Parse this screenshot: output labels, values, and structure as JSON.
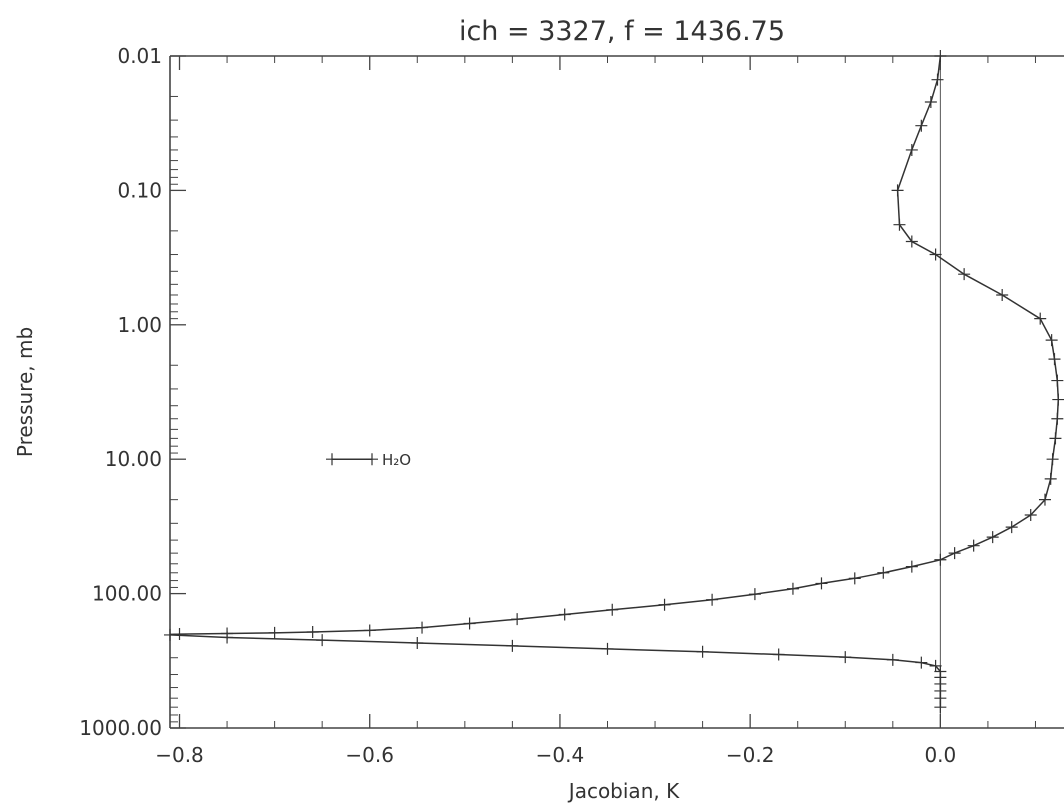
{
  "chart_data": {
    "type": "line",
    "title": "ich = 3327, f = 1436.75",
    "xlabel": "Jacobian, K",
    "ylabel": "Pressure, mb",
    "xlim": [
      -0.81,
      0.13
    ],
    "ylim": [
      1000,
      0.01
    ],
    "y_scale": "log",
    "x_ticks": [
      -0.8,
      -0.6,
      -0.4,
      -0.2,
      0.0
    ],
    "x_tick_labels": [
      "−0.8",
      "−0.6",
      "−0.4",
      "−0.2",
      "0.0"
    ],
    "y_ticks": [
      0.01,
      0.1,
      1,
      10,
      100,
      1000
    ],
    "y_tick_labels": [
      "0.01",
      "0.10",
      "1.00",
      "10.00",
      "100.00",
      "1000.00"
    ],
    "zero_line_x": 0.0,
    "legend": {
      "entries": [
        "H₂O"
      ],
      "position": "middle-left"
    },
    "series": [
      {
        "name": "H₂O",
        "marker": "+",
        "x": [
          0.0,
          -0.003,
          -0.01,
          -0.02,
          -0.03,
          -0.045,
          -0.043,
          -0.03,
          -0.005,
          0.025,
          0.065,
          0.105,
          0.117,
          0.12,
          0.123,
          0.124,
          0.123,
          0.121,
          0.118,
          0.116,
          0.11,
          0.095,
          0.075,
          0.055,
          0.035,
          0.015,
          0.0,
          -0.03,
          -0.06,
          -0.09,
          -0.125,
          -0.155,
          -0.195,
          -0.24,
          -0.29,
          -0.345,
          -0.395,
          -0.445,
          -0.495,
          -0.545,
          -0.6,
          -0.66,
          -0.7,
          -0.75,
          -0.8,
          -0.81,
          -0.75,
          -0.65,
          -0.55,
          -0.45,
          -0.35,
          -0.25,
          -0.17,
          -0.1,
          -0.05,
          -0.02,
          -0.005,
          0.0,
          0.0,
          0.0,
          0.0,
          0.0,
          0.0
        ],
        "y": [
          0.01,
          0.015,
          0.022,
          0.033,
          0.05,
          0.1,
          0.18,
          0.24,
          0.3,
          0.42,
          0.6,
          0.9,
          1.3,
          1.8,
          2.6,
          3.6,
          5.0,
          7.0,
          10,
          14,
          20,
          26,
          32,
          38,
          44,
          50,
          56,
          63,
          70,
          77,
          84,
          92,
          101,
          111,
          121,
          132,
          143,
          155,
          167,
          179,
          188,
          193,
          196,
          198,
          200,
          203,
          212,
          222,
          233,
          245,
          258,
          271,
          284,
          297,
          311,
          326,
          345,
          380,
          420,
          470,
          530,
          600,
          700
        ]
      }
    ]
  }
}
